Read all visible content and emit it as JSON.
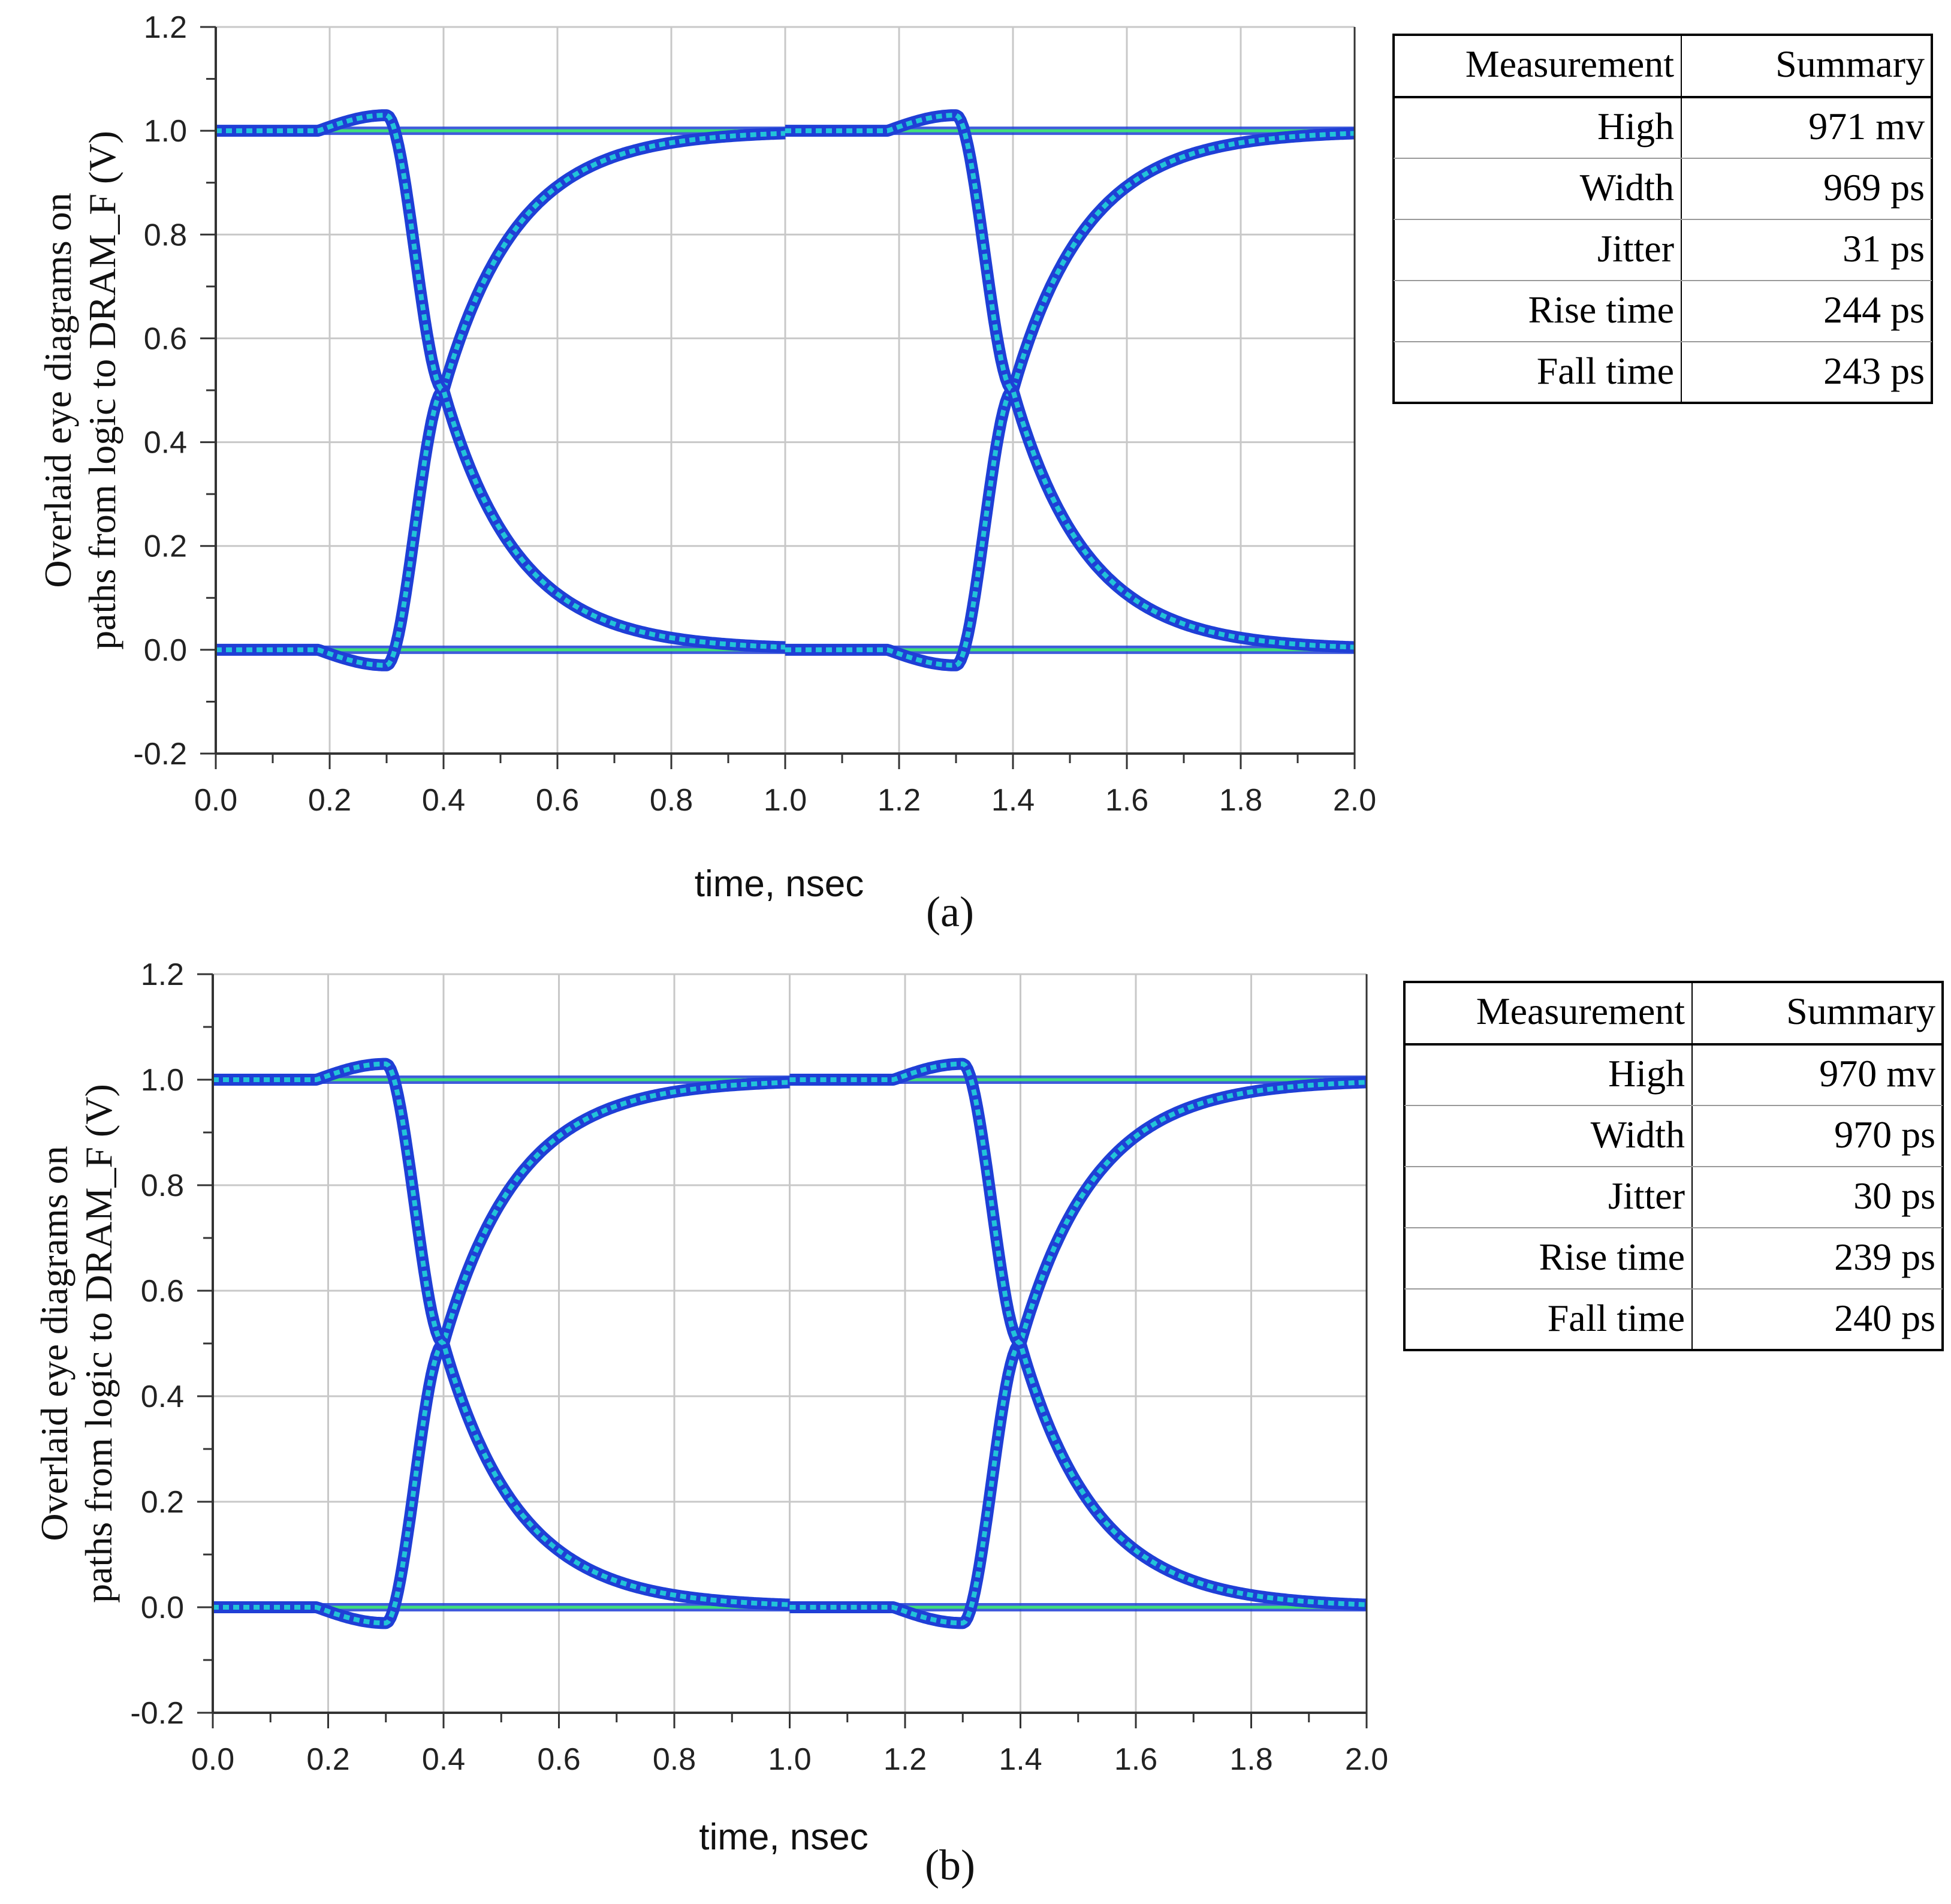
{
  "chart_data": [
    {
      "type": "line",
      "panel": "(a)",
      "title": "",
      "xlabel": "time, nsec",
      "ylabel_lines": [
        "Overlaid eye diagrams on",
        "paths from logic to DRAM_F (V)"
      ],
      "xlim": [
        0.0,
        2.0
      ],
      "ylim": [
        -0.2,
        1.2
      ],
      "xticks": [
        "0.0",
        "0.2",
        "0.4",
        "0.6",
        "0.8",
        "1.0",
        "1.2",
        "1.4",
        "1.6",
        "1.8",
        "2.0"
      ],
      "yticks": [
        "-0.2",
        "0.0",
        "0.2",
        "0.4",
        "0.6",
        "0.8",
        "1.0",
        "1.2"
      ],
      "grid": true,
      "crossing_times": [
        0.5,
        1.5
      ],
      "rise_start": 0.3,
      "rise_time_ns": 0.244,
      "fall_time_ns": 0.243,
      "overshoot": 0.03,
      "colors": {
        "trace_outer": "#1f3fd6",
        "trace_inner": "#22c3d8",
        "flat": "#3fe07a",
        "hot": "#ff6a2a"
      },
      "table": {
        "headers": [
          "Measurement",
          "Summary"
        ],
        "rows": [
          [
            "High",
            "971 mv"
          ],
          [
            "Width",
            "969 ps"
          ],
          [
            "Jitter",
            "31 ps"
          ],
          [
            "Rise time",
            "244 ps"
          ],
          [
            "Fall time",
            "243 ps"
          ]
        ]
      }
    },
    {
      "type": "line",
      "panel": "(b)",
      "title": "",
      "xlabel": "time, nsec",
      "ylabel_lines": [
        "Overlaid eye diagrams on",
        "paths from logic to DRAM_F (V)"
      ],
      "xlim": [
        0.0,
        2.0
      ],
      "ylim": [
        -0.2,
        1.2
      ],
      "xticks": [
        "0.0",
        "0.2",
        "0.4",
        "0.6",
        "0.8",
        "1.0",
        "1.2",
        "1.4",
        "1.6",
        "1.8",
        "2.0"
      ],
      "yticks": [
        "-0.2",
        "0.0",
        "0.2",
        "0.4",
        "0.6",
        "0.8",
        "1.0",
        "1.2"
      ],
      "grid": true,
      "crossing_times": [
        0.5,
        1.5
      ],
      "rise_start": 0.3,
      "rise_time_ns": 0.239,
      "fall_time_ns": 0.24,
      "overshoot": 0.03,
      "colors": {
        "trace_outer": "#1f3fd6",
        "trace_inner": "#22c3d8",
        "flat": "#3fe07a",
        "hot": "#ff6a2a"
      },
      "table": {
        "headers": [
          "Measurement",
          "Summary"
        ],
        "rows": [
          [
            "High",
            "970 mv"
          ],
          [
            "Width",
            "970 ps"
          ],
          [
            "Jitter",
            "30 ps"
          ],
          [
            "Rise time",
            "239 ps"
          ],
          [
            "Fall time",
            "240 ps"
          ]
        ]
      }
    }
  ]
}
